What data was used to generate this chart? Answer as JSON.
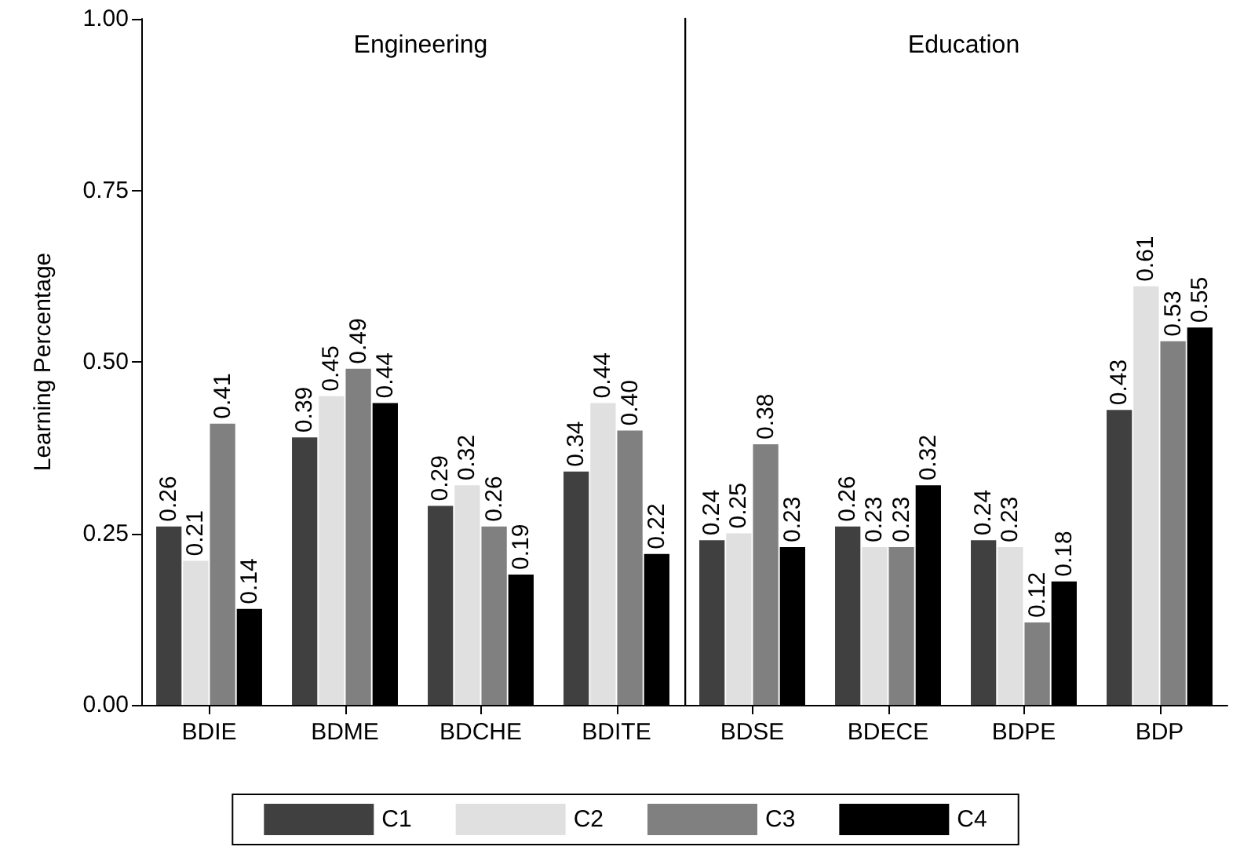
{
  "chart_data": [
    {
      "type": "bar",
      "title": "Engineering",
      "ylabel": "Learning Percentage",
      "categories": [
        "BDIE",
        "BDME",
        "BDCHE",
        "BDITE"
      ],
      "series": [
        {
          "name": "C1",
          "color": "#404040",
          "values": [
            0.26,
            0.39,
            0.29,
            0.34
          ],
          "value_labels": [
            "0.26",
            "0.39",
            "0.29",
            "0.34"
          ]
        },
        {
          "name": "C2",
          "color": "#e0e0e0",
          "values": [
            0.21,
            0.45,
            0.32,
            0.44
          ],
          "value_labels": [
            "0.21",
            "0.45",
            "0.32",
            "0.44"
          ]
        },
        {
          "name": "C3",
          "color": "#808080",
          "values": [
            0.41,
            0.49,
            0.26,
            0.4
          ],
          "value_labels": [
            "0.41",
            "0.49",
            "0.26",
            "0.40"
          ]
        },
        {
          "name": "C4",
          "color": "#000000",
          "values": [
            0.14,
            0.44,
            0.19,
            0.22
          ],
          "value_labels": [
            "0.14",
            "0.44",
            "0.19",
            "0.22"
          ]
        }
      ],
      "ylim": [
        0,
        1
      ],
      "yticks": [
        {
          "value": 0,
          "label": "0.00"
        },
        {
          "value": 0.25,
          "label": "0.25"
        },
        {
          "value": 0.5,
          "label": "0.50"
        },
        {
          "value": 0.75,
          "label": "0.75"
        },
        {
          "value": 1,
          "label": "1.00"
        }
      ],
      "grid": false,
      "legend": "bottom"
    },
    {
      "type": "bar",
      "title": "Education",
      "categories": [
        "BDSE",
        "BDECE",
        "BDPE",
        "BDP"
      ],
      "series": [
        {
          "color": "#404040",
          "values": [
            0.24,
            0.26,
            0.24,
            0.43
          ],
          "value_labels": [
            "0.24",
            "0.26",
            "0.24",
            "0.43"
          ]
        },
        {
          "color": "#e0e0e0",
          "values": [
            0.25,
            0.23,
            0.23,
            0.61
          ],
          "value_labels": [
            "0.25",
            "0.23",
            "0.23",
            "0.61"
          ]
        },
        {
          "color": "#808080",
          "values": [
            0.38,
            0.23,
            0.12,
            0.53
          ],
          "value_labels": [
            "0.38",
            "0.23",
            "0.12",
            "0.53"
          ]
        },
        {
          "color": "#000000",
          "values": [
            0.23,
            0.32,
            0.18,
            0.55
          ],
          "value_labels": [
            "0.23",
            "0.32",
            "0.18",
            "0.55"
          ]
        }
      ],
      "ylim": [
        0,
        1
      ],
      "grid": false,
      "tick_labels": "x"
    }
  ]
}
